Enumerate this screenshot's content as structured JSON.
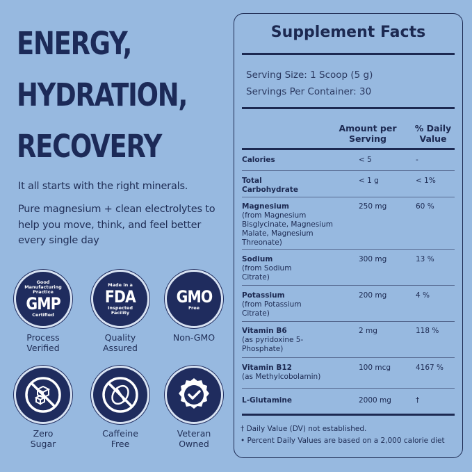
{
  "headline": [
    "ENERGY,",
    "HYDRATION,",
    "RECOVERY"
  ],
  "tagline": "It all starts with the right minerals.",
  "description": "Pure magnesium + clean electrolytes to help you move, think, and feel better every single day",
  "badges": [
    {
      "icon": "gmp-badge-icon",
      "top": "Good Manufacturing Practice",
      "big": "GMP",
      "bottom": "Certified",
      "caption": "Process Verified"
    },
    {
      "icon": "fda-badge-icon",
      "top": "Made in a",
      "big": "FDA",
      "bottom": "Inspected Facility",
      "caption": "Quality Assured"
    },
    {
      "icon": "gmo-badge-icon",
      "top": "",
      "big": "GMO",
      "bottom": "Free",
      "caption": "Non-GMO"
    },
    {
      "icon": "zero-sugar-icon",
      "caption": "Zero Sugar"
    },
    {
      "icon": "caffeine-free-icon",
      "caption": "Caffeine Free"
    },
    {
      "icon": "veteran-owned-icon",
      "caption": "Veteran Owned"
    }
  ],
  "facts": {
    "title": "Supplement Facts",
    "serving_size": "Serving Size: 1 Scoop (5 g)",
    "servings_per_container": "Servings Per Container: 30",
    "col_amount": "Amount per Serving",
    "col_dv": "% Daily Value",
    "rows": [
      {
        "name": "Calories",
        "sub": "",
        "amount": "< 5",
        "dv": "-"
      },
      {
        "name": "Total Carbohydrate",
        "sub": "",
        "amount": "< 1 g",
        "dv": "< 1%"
      },
      {
        "name": "Magnesium",
        "sub": "(from Magnesium Bisglycinate, Magnesium Malate, Magnesium Threonate)",
        "amount": "250 mg",
        "dv": "60 %"
      },
      {
        "name": "Sodium",
        "sub": "(from Sodium Citrate)",
        "amount": "300 mg",
        "dv": "13 %"
      },
      {
        "name": "Potassium",
        "sub": "(from Potassium Citrate)",
        "amount": "200 mg",
        "dv": "4 %"
      },
      {
        "name": "Vitamin B6",
        "sub": "(as pyridoxine 5-Phosphate)",
        "amount": "2 mg",
        "dv": "118 %"
      },
      {
        "name": "Vitamin B12",
        "sub": "(as Methylcobolamin)",
        "amount": "100 mcg",
        "dv": "4167 %"
      },
      {
        "name": "L-Glutamine",
        "sub": "",
        "amount": "2000 mg",
        "dv": "†"
      }
    ],
    "footnote1": "† Daily Value (DV) not established.",
    "footnote2": "• Percent Daily Values are based on a 2,000 calorie diet"
  }
}
